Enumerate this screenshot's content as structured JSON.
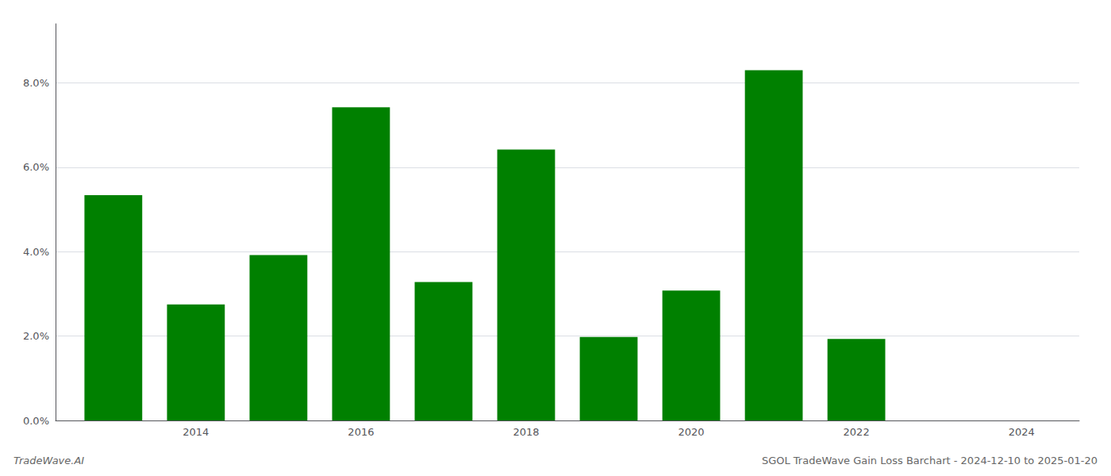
{
  "chart_data": {
    "type": "bar",
    "title": "SGOL TradeWave Gain Loss Barchart - 2024-12-10 to 2025-01-20",
    "annotations": [
      "TradeWave.AI"
    ],
    "x": [
      2013,
      2014,
      2015,
      2016,
      2017,
      2018,
      2019,
      2020,
      2021,
      2022,
      2023
    ],
    "values": [
      0.0534,
      0.0275,
      0.0392,
      0.0742,
      0.0328,
      0.0642,
      0.0198,
      0.0308,
      0.083,
      0.0193,
      0.0
    ],
    "color": "#008000",
    "xlim": [
      2012.3,
      2024.7
    ],
    "xticks": [
      2014,
      2016,
      2018,
      2020,
      2022,
      2024
    ],
    "ylim": [
      0,
      0.094
    ],
    "yticks": [
      {
        "value": 0.0,
        "label": "0.0%"
      },
      {
        "value": 0.02,
        "label": "2.0%"
      },
      {
        "value": 0.04,
        "label": "4.0%"
      },
      {
        "value": 0.06,
        "label": "6.0%"
      },
      {
        "value": 0.08,
        "label": "8.0%"
      }
    ],
    "grid": true
  }
}
